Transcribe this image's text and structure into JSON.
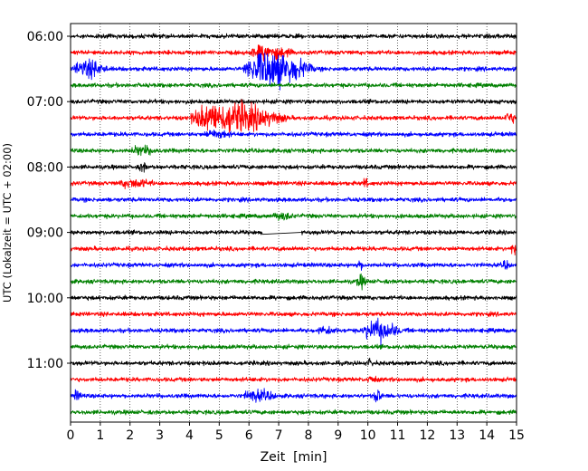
{
  "chart_data": {
    "type": "line",
    "title": "",
    "xlabel": "Zeit  [min]",
    "ylabel": "UTC (Lokalzeit = UTC + 02:00)",
    "xlim": [
      0,
      15
    ],
    "x_ticks": [
      "0",
      "1",
      "2",
      "3",
      "4",
      "5",
      "6",
      "7",
      "8",
      "9",
      "10",
      "11",
      "12",
      "13",
      "14",
      "15"
    ],
    "y_tick_labels": [
      "06:00",
      "07:00",
      "08:00",
      "09:00",
      "10:00",
      "11:00"
    ],
    "grid": "vertical dotted at each minute",
    "trace_interval_min": 15,
    "trace_colors": [
      "#000000",
      "#ff0000",
      "#0000ff",
      "#008000"
    ],
    "traces": [
      {
        "time": "06:00",
        "color": "#000000",
        "events": []
      },
      {
        "time": "06:15",
        "color": "#ff0000",
        "events": [
          {
            "start_min": 6.0,
            "end_min": 7.6,
            "amplitude": 0.9
          }
        ]
      },
      {
        "time": "06:30",
        "color": "#0000ff",
        "events": [
          {
            "start_min": 0.1,
            "end_min": 1.3,
            "amplitude": 1.2
          },
          {
            "start_min": 5.8,
            "end_min": 8.3,
            "amplitude": 2.6
          }
        ]
      },
      {
        "time": "06:45",
        "color": "#008000",
        "events": []
      },
      {
        "time": "07:00",
        "color": "#000000",
        "events": []
      },
      {
        "time": "07:15",
        "color": "#ff0000",
        "events": [
          {
            "start_min": 4.0,
            "end_min": 7.4,
            "amplitude": 2.2
          },
          {
            "start_min": 14.6,
            "end_min": 15.0,
            "amplitude": 0.8
          }
        ]
      },
      {
        "time": "07:30",
        "color": "#0000ff",
        "events": [
          {
            "start_min": 4.5,
            "end_min": 5.5,
            "amplitude": 0.5
          }
        ]
      },
      {
        "time": "07:45",
        "color": "#008000",
        "events": [
          {
            "start_min": 2.0,
            "end_min": 3.0,
            "amplitude": 0.5
          }
        ]
      },
      {
        "time": "08:00",
        "color": "#000000",
        "events": [
          {
            "start_min": 2.3,
            "end_min": 2.6,
            "amplitude": 0.6
          }
        ]
      },
      {
        "time": "08:15",
        "color": "#ff0000",
        "events": [
          {
            "start_min": 1.6,
            "end_min": 2.9,
            "amplitude": 0.5
          },
          {
            "start_min": 9.8,
            "end_min": 10.1,
            "amplitude": 0.5
          }
        ]
      },
      {
        "time": "08:30",
        "color": "#0000ff",
        "events": []
      },
      {
        "time": "08:45",
        "color": "#008000",
        "events": [
          {
            "start_min": 6.8,
            "end_min": 7.6,
            "amplitude": 0.4
          }
        ]
      },
      {
        "time": "09:00",
        "color": "#000000",
        "events": [],
        "gap": [
          6.45,
          7.75
        ]
      },
      {
        "time": "09:15",
        "color": "#ff0000",
        "events": [
          {
            "start_min": 14.8,
            "end_min": 15.0,
            "amplitude": 0.9
          }
        ]
      },
      {
        "time": "09:30",
        "color": "#0000ff",
        "events": [
          {
            "start_min": 9.6,
            "end_min": 9.9,
            "amplitude": 0.5
          },
          {
            "start_min": 14.5,
            "end_min": 14.8,
            "amplitude": 0.5
          }
        ]
      },
      {
        "time": "09:45",
        "color": "#008000",
        "events": [
          {
            "start_min": 9.6,
            "end_min": 10.0,
            "amplitude": 0.8
          }
        ]
      },
      {
        "time": "10:00",
        "color": "#000000",
        "events": []
      },
      {
        "time": "10:15",
        "color": "#ff0000",
        "events": []
      },
      {
        "time": "10:30",
        "color": "#0000ff",
        "events": [
          {
            "start_min": 8.3,
            "end_min": 9.0,
            "amplitude": 0.5
          },
          {
            "start_min": 9.8,
            "end_min": 11.2,
            "amplitude": 1.4
          }
        ]
      },
      {
        "time": "10:45",
        "color": "#008000",
        "events": []
      },
      {
        "time": "11:00",
        "color": "#000000",
        "events": [
          {
            "start_min": 10.0,
            "end_min": 10.2,
            "amplitude": 0.5
          }
        ]
      },
      {
        "time": "11:15",
        "color": "#ff0000",
        "events": [
          {
            "start_min": 10.0,
            "end_min": 10.3,
            "amplitude": 0.6
          }
        ]
      },
      {
        "time": "11:30",
        "color": "#0000ff",
        "events": [
          {
            "start_min": 0.1,
            "end_min": 0.4,
            "amplitude": 0.6
          },
          {
            "start_min": 5.8,
            "end_min": 7.0,
            "amplitude": 0.7
          },
          {
            "start_min": 10.2,
            "end_min": 10.5,
            "amplitude": 1.0
          }
        ]
      },
      {
        "time": "11:45",
        "color": "#008000",
        "events": []
      }
    ]
  }
}
